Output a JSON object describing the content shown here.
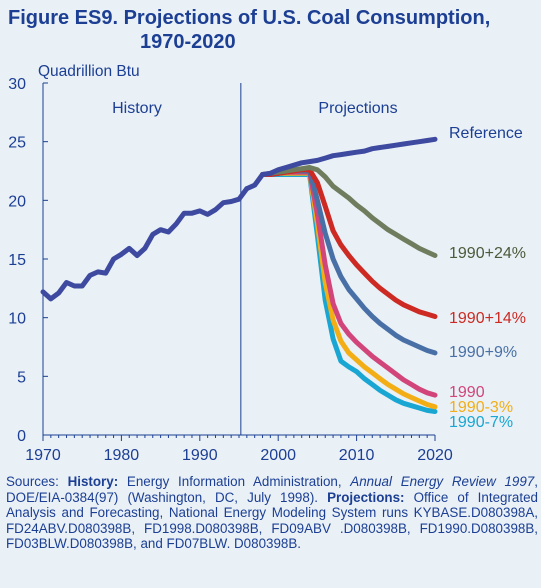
{
  "figure": {
    "title_line1": "Figure ES9.  Projections of U.S. Coal Consumption,",
    "title_line2": "1970-2020"
  },
  "chart_data": {
    "type": "line",
    "title": "Figure ES9.  Projections of U.S. Coal Consumption, 1970-2020",
    "ylabel": "Quadrillion Btu",
    "xlabel": "",
    "xlim": [
      1970,
      2020
    ],
    "ylim": [
      0,
      30
    ],
    "x_ticks": [
      1970,
      1980,
      1990,
      2000,
      2010,
      2020
    ],
    "y_ticks": [
      0,
      5,
      10,
      15,
      20,
      25,
      30
    ],
    "grid": false,
    "divider_year": 1996,
    "region_labels": [
      "History",
      "Projections"
    ],
    "history": {
      "x": [
        1970,
        1971,
        1972,
        1973,
        1974,
        1975,
        1976,
        1977,
        1978,
        1979,
        1980,
        1981,
        1982,
        1983,
        1984,
        1985,
        1986,
        1987,
        1988,
        1989,
        1990,
        1991,
        1992,
        1993,
        1994,
        1995,
        1996
      ],
      "values": [
        12.2,
        11.6,
        12.1,
        13.0,
        12.7,
        12.7,
        13.6,
        13.9,
        13.8,
        15.0,
        15.4,
        15.9,
        15.3,
        15.9,
        17.1,
        17.5,
        17.3,
        18.0,
        18.9,
        18.9,
        19.1,
        18.8,
        19.2,
        19.8,
        19.9,
        20.1,
        21.0
      ]
    },
    "series": [
      {
        "name": "Reference",
        "color": "#3d4aa0",
        "x": [
          1996,
          1997,
          1998,
          1999,
          2000,
          2001,
          2002,
          2003,
          2004,
          2005,
          2006,
          2007,
          2008,
          2009,
          2010,
          2011,
          2012,
          2013,
          2014,
          2015,
          2016,
          2017,
          2018,
          2019,
          2020
        ],
        "values": [
          21.0,
          21.3,
          22.2,
          22.3,
          22.6,
          22.8,
          23.0,
          23.2,
          23.3,
          23.4,
          23.6,
          23.8,
          23.9,
          24.0,
          24.1,
          24.2,
          24.4,
          24.5,
          24.6,
          24.7,
          24.8,
          24.9,
          25.0,
          25.1,
          25.2
        ]
      },
      {
        "name": "1990+24%",
        "color": "#6f7d5e",
        "x": [
          1998,
          1999,
          2000,
          2001,
          2002,
          2003,
          2004,
          2005,
          2006,
          2007,
          2008,
          2009,
          2010,
          2011,
          2012,
          2013,
          2014,
          2015,
          2016,
          2017,
          2018,
          2019,
          2020
        ],
        "values": [
          22.2,
          22.3,
          22.4,
          22.5,
          22.6,
          22.7,
          22.8,
          22.6,
          22.0,
          21.2,
          20.7,
          20.2,
          19.6,
          19.1,
          18.5,
          18.0,
          17.5,
          17.1,
          16.7,
          16.3,
          15.9,
          15.6,
          15.3
        ]
      },
      {
        "name": "1990+14%",
        "color": "#cc2a23",
        "x": [
          1998,
          1999,
          2000,
          2001,
          2002,
          2003,
          2004,
          2005,
          2006,
          2007,
          2008,
          2009,
          2010,
          2011,
          2012,
          2013,
          2014,
          2015,
          2016,
          2017,
          2018,
          2019,
          2020
        ],
        "values": [
          22.2,
          22.2,
          22.3,
          22.4,
          22.5,
          22.6,
          22.6,
          21.5,
          19.5,
          17.4,
          16.2,
          15.3,
          14.5,
          13.8,
          13.1,
          12.5,
          12.0,
          11.5,
          11.1,
          10.8,
          10.5,
          10.3,
          10.1
        ]
      },
      {
        "name": "1990+9%",
        "color": "#4970a6",
        "x": [
          1998,
          1999,
          2000,
          2001,
          2002,
          2003,
          2004,
          2005,
          2006,
          2007,
          2008,
          2009,
          2010,
          2011,
          2012,
          2013,
          2014,
          2015,
          2016,
          2017,
          2018,
          2019,
          2020
        ],
        "values": [
          22.2,
          22.2,
          22.3,
          22.4,
          22.5,
          22.5,
          22.5,
          20.0,
          17.2,
          15.0,
          13.5,
          12.4,
          11.6,
          10.8,
          10.1,
          9.5,
          9.0,
          8.5,
          8.1,
          7.8,
          7.5,
          7.2,
          7.0
        ]
      },
      {
        "name": "1990",
        "color": "#d1457a",
        "x": [
          1998,
          1999,
          2000,
          2001,
          2002,
          2003,
          2004,
          2005,
          2006,
          2007,
          2008,
          2009,
          2010,
          2011,
          2012,
          2013,
          2014,
          2015,
          2016,
          2017,
          2018,
          2019,
          2020
        ],
        "values": [
          22.2,
          22.2,
          22.3,
          22.4,
          22.4,
          22.4,
          22.4,
          18.8,
          14.5,
          11.2,
          9.5,
          8.6,
          7.9,
          7.3,
          6.7,
          6.2,
          5.7,
          5.2,
          4.7,
          4.3,
          3.9,
          3.6,
          3.4
        ]
      },
      {
        "name": "1990-3%",
        "color": "#f3ae16",
        "x": [
          1998,
          1999,
          2000,
          2001,
          2002,
          2003,
          2004,
          2005,
          2006,
          2007,
          2008,
          2009,
          2010,
          2011,
          2012,
          2013,
          2014,
          2015,
          2016,
          2017,
          2018,
          2019,
          2020
        ],
        "values": [
          22.2,
          22.2,
          22.3,
          22.3,
          22.3,
          22.3,
          22.3,
          18.0,
          13.0,
          9.8,
          8.0,
          7.0,
          6.4,
          5.8,
          5.3,
          4.8,
          4.3,
          3.9,
          3.5,
          3.2,
          2.9,
          2.6,
          2.4
        ]
      },
      {
        "name": "1990-7%",
        "color": "#19a6d2",
        "x": [
          1998,
          1999,
          2000,
          2001,
          2002,
          2003,
          2004,
          2005,
          2006,
          2007,
          2008,
          2009,
          2010,
          2011,
          2012,
          2013,
          2014,
          2015,
          2016,
          2017,
          2018,
          2019,
          2020
        ],
        "values": [
          22.2,
          22.2,
          22.2,
          22.2,
          22.2,
          22.2,
          22.2,
          17.0,
          11.5,
          8.2,
          6.3,
          5.8,
          5.4,
          4.8,
          4.3,
          3.8,
          3.4,
          3.0,
          2.7,
          2.5,
          2.3,
          2.1,
          2.0
        ]
      }
    ],
    "history_color": "#3d4aa0"
  },
  "sources": {
    "prefix": "Sources: ",
    "history_label": "History:",
    "history_text": " Energy Information Administration, ",
    "aer_title": "Annual Energy Review 1997",
    "history_tail": ", DOE/EIA-0384(97) (Washington, DC, July 1998). ",
    "projections_label": "Projections:",
    "projections_text": " Office of Integrated Analysis and Forecasting, National Energy Modeling System runs KYBASE.D080398A, FD24ABV.D080398B, FD1998.D080398B, FD09ABV .D080398B, FD1990.D080398B, FD03BLW.D080398B, and FD07BLW. D080398B."
  }
}
